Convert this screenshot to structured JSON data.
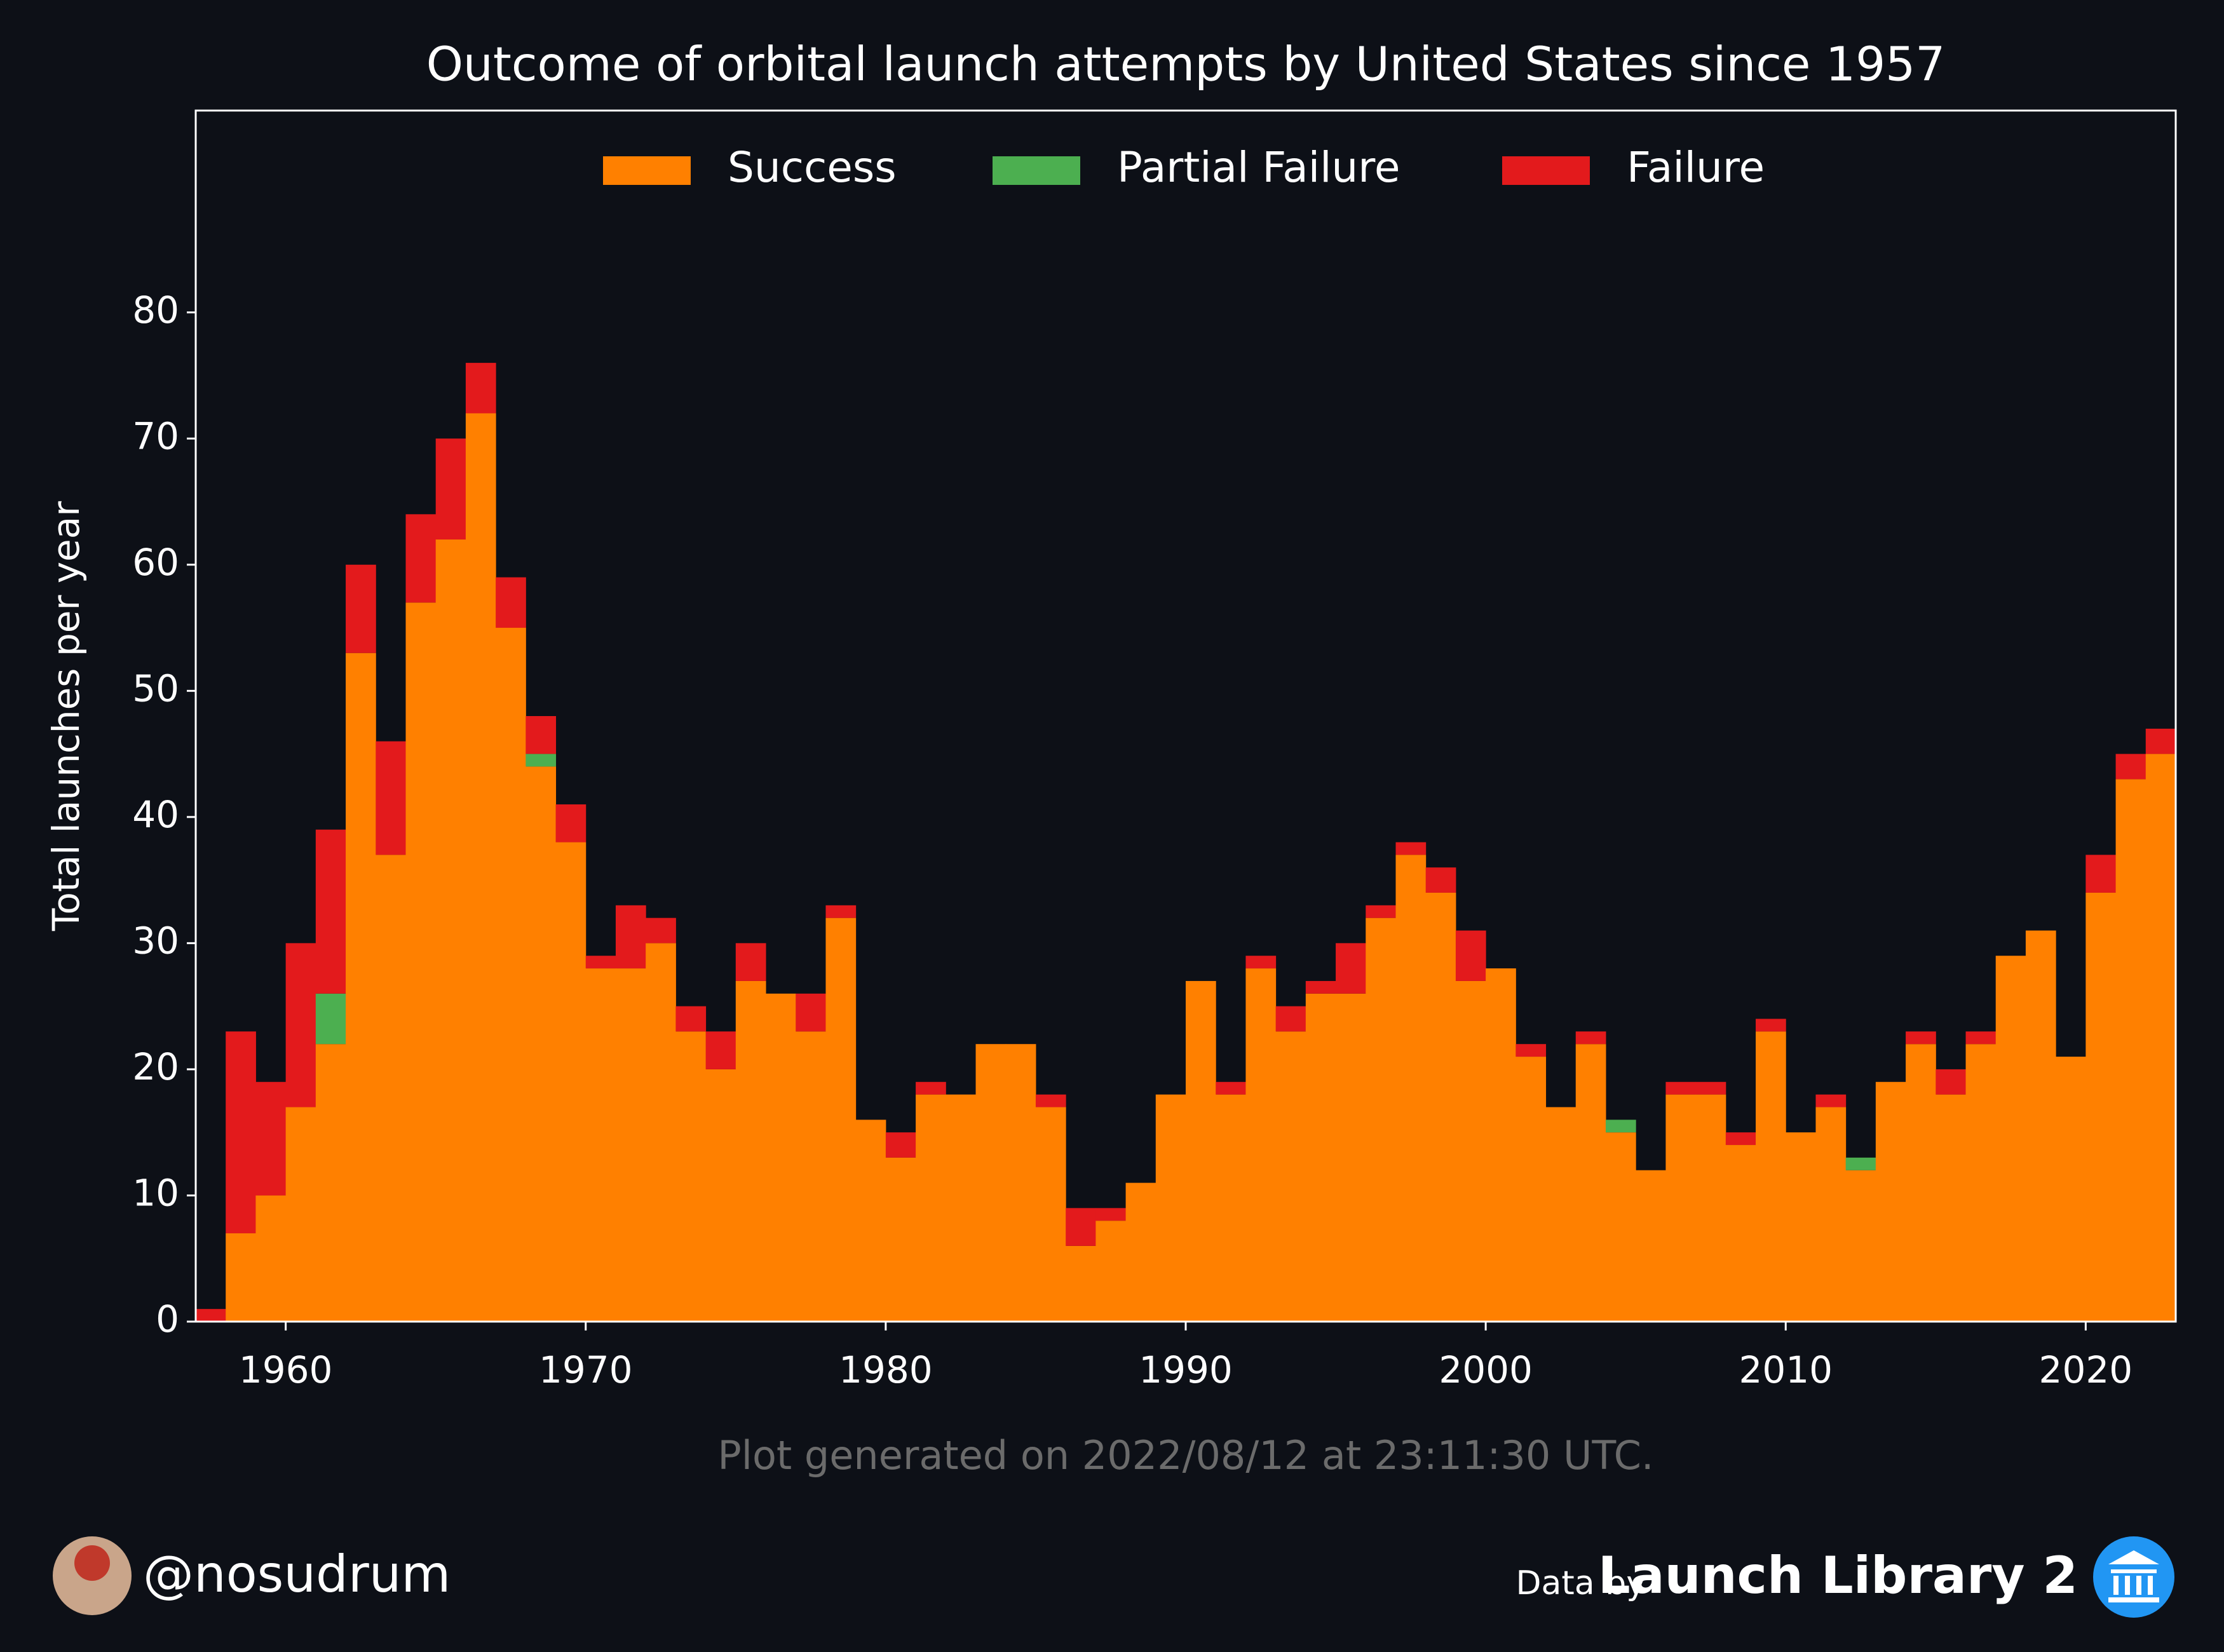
{
  "chart_data": {
    "type": "bar",
    "stacked": true,
    "title": "Outcome of orbital launch attempts by United States since 1957",
    "y_label": "Total launches per year",
    "note": "Plot generated on 2022/08/12 at 23:11:30 UTC.",
    "author": "@nosudrum",
    "source_prefix": "Data by",
    "source": "Launch Library 2",
    "legend": "upper center",
    "x": [
      1957,
      1958,
      1959,
      1960,
      1961,
      1962,
      1963,
      1964,
      1965,
      1966,
      1967,
      1968,
      1969,
      1970,
      1971,
      1972,
      1973,
      1974,
      1975,
      1976,
      1977,
      1978,
      1979,
      1980,
      1981,
      1982,
      1983,
      1984,
      1985,
      1986,
      1987,
      1988,
      1989,
      1990,
      1991,
      1992,
      1993,
      1994,
      1995,
      1996,
      1997,
      1998,
      1999,
      2000,
      2001,
      2002,
      2003,
      2004,
      2005,
      2006,
      2007,
      2008,
      2009,
      2010,
      2011,
      2012,
      2013,
      2014,
      2015,
      2016,
      2017,
      2018,
      2019,
      2020,
      2021,
      2022
    ],
    "series": [
      {
        "name": "Success",
        "color": "#ff8000",
        "values": [
          0,
          7,
          10,
          17,
          22,
          53,
          37,
          57,
          62,
          72,
          55,
          44,
          38,
          28,
          28,
          30,
          23,
          20,
          27,
          26,
          23,
          32,
          16,
          13,
          18,
          18,
          22,
          22,
          17,
          6,
          8,
          11,
          18,
          27,
          18,
          28,
          23,
          26,
          26,
          32,
          37,
          34,
          27,
          28,
          21,
          17,
          22,
          15,
          12,
          18,
          18,
          14,
          23,
          15,
          17,
          12,
          19,
          22,
          18,
          22,
          29,
          31,
          21,
          34,
          43,
          45
        ]
      },
      {
        "name": "Partial Failure",
        "color": "#4caf50",
        "values": [
          0,
          0,
          0,
          0,
          4,
          0,
          0,
          0,
          0,
          0,
          0,
          1,
          0,
          0,
          0,
          0,
          0,
          0,
          0,
          0,
          0,
          0,
          0,
          0,
          0,
          0,
          0,
          0,
          0,
          0,
          0,
          0,
          0,
          0,
          0,
          0,
          0,
          0,
          0,
          0,
          0,
          0,
          0,
          0,
          0,
          0,
          0,
          1,
          0,
          0,
          0,
          0,
          0,
          0,
          0,
          1,
          0,
          0,
          0,
          0,
          0,
          0,
          0,
          0,
          0,
          0
        ]
      },
      {
        "name": "Failure",
        "color": "#e31a1c",
        "values": [
          1,
          16,
          9,
          13,
          13,
          7,
          9,
          7,
          8,
          4,
          4,
          3,
          3,
          1,
          5,
          2,
          2,
          3,
          3,
          0,
          3,
          1,
          0,
          2,
          1,
          0,
          0,
          0,
          1,
          3,
          1,
          0,
          0,
          0,
          1,
          1,
          2,
          1,
          4,
          1,
          1,
          2,
          4,
          0,
          1,
          0,
          1,
          0,
          0,
          1,
          1,
          1,
          1,
          0,
          1,
          0,
          0,
          1,
          2,
          1,
          0,
          0,
          0,
          3,
          2,
          2
        ]
      }
    ],
    "xlim": [
      1957,
      2023
    ],
    "xticks": [
      1960,
      1970,
      1980,
      1990,
      2000,
      2010,
      2020
    ],
    "ylim": [
      0,
      96
    ],
    "yticks": [
      0,
      10,
      20,
      30,
      40,
      50,
      60,
      70,
      80
    ]
  }
}
